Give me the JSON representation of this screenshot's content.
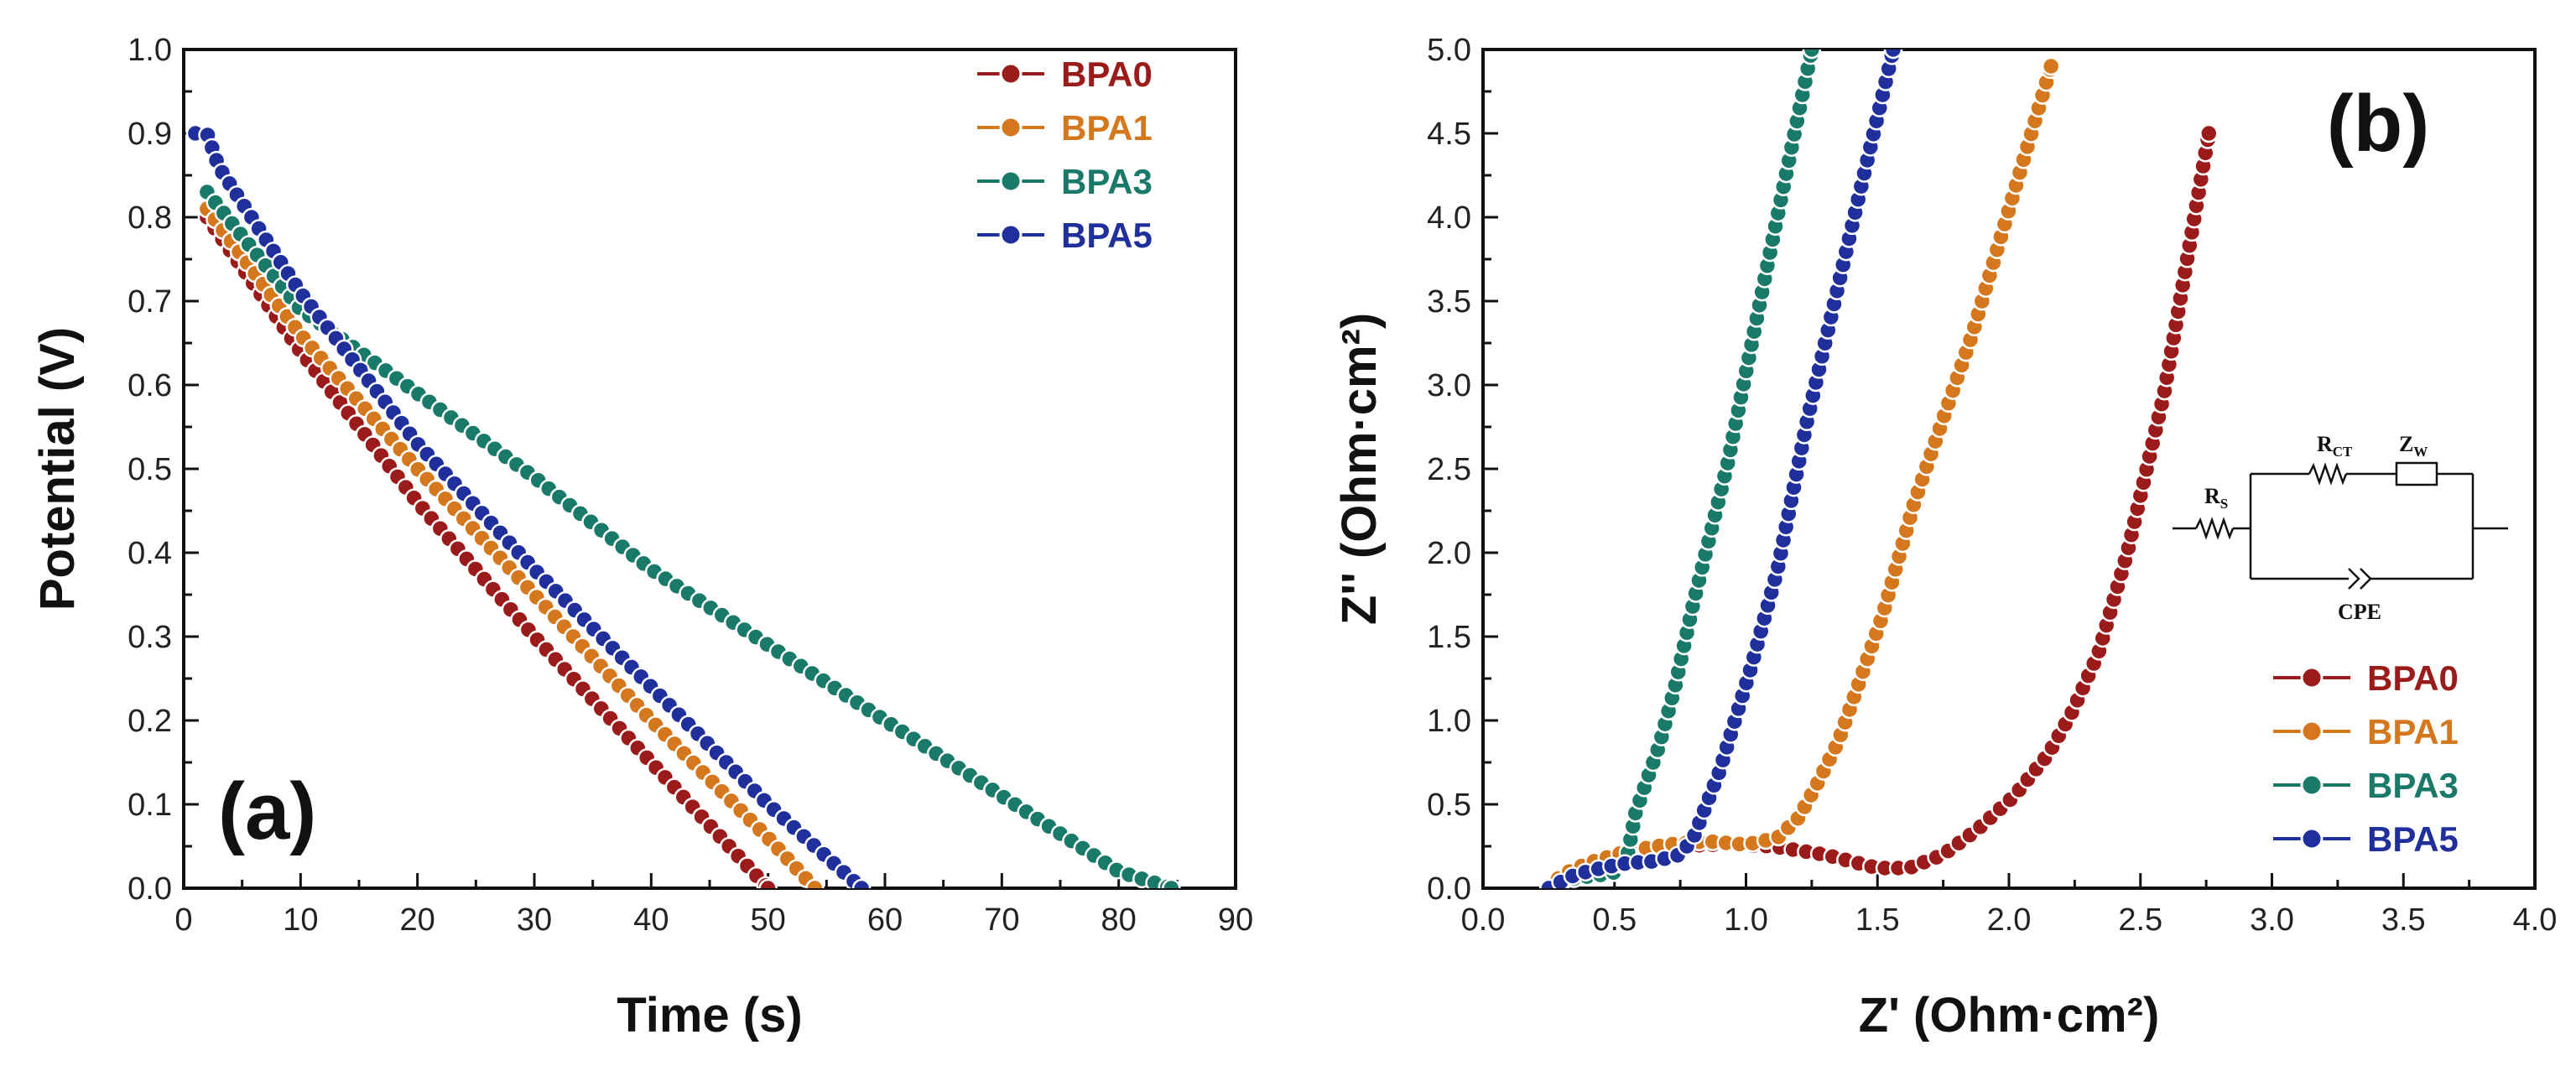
{
  "chart_data": [
    {
      "type": "line",
      "panel_label": "(a)",
      "xlabel": "Time (s)",
      "ylabel": "Potential (V)",
      "xlim": [
        0,
        90
      ],
      "ylim": [
        0,
        1.0
      ],
      "xticks": [
        0,
        10,
        20,
        30,
        40,
        50,
        60,
        70,
        80,
        90
      ],
      "yticks": [
        0.0,
        0.1,
        0.2,
        0.3,
        0.4,
        0.5,
        0.6,
        0.7,
        0.8,
        0.9,
        1.0
      ],
      "xtick_labels": [
        "0",
        "10",
        "20",
        "30",
        "40",
        "50",
        "60",
        "70",
        "80",
        "90"
      ],
      "ytick_labels": [
        "0.0",
        "0.1",
        "0.2",
        "0.3",
        "0.4",
        "0.5",
        "0.6",
        "0.7",
        "0.8",
        "0.9",
        "1.0"
      ],
      "legend_position": "top-right",
      "series": [
        {
          "name": "BPA0",
          "color": "#9b1b1b",
          "points": [
            [
              2,
              0.8
            ],
            [
              10,
              0.64
            ],
            [
              20,
              0.46
            ],
            [
              30,
              0.3
            ],
            [
              40,
              0.15
            ],
            [
              50,
              0.0
            ]
          ]
        },
        {
          "name": "BPA1",
          "color": "#d4771d",
          "points": [
            [
              2,
              0.81
            ],
            [
              10,
              0.66
            ],
            [
              20,
              0.5
            ],
            [
              30,
              0.35
            ],
            [
              40,
              0.2
            ],
            [
              50,
              0.06
            ],
            [
              54,
              0.0
            ]
          ]
        },
        {
          "name": "BPA3",
          "color": "#1a7a6a",
          "points": [
            [
              2,
              0.83
            ],
            [
              10,
              0.69
            ],
            [
              20,
              0.59
            ],
            [
              30,
              0.49
            ],
            [
              40,
              0.38
            ],
            [
              50,
              0.29
            ],
            [
              60,
              0.2
            ],
            [
              70,
              0.11
            ],
            [
              80,
              0.02
            ],
            [
              84.5,
              0.0
            ]
          ]
        },
        {
          "name": "BPA5",
          "color": "#1f2f9c",
          "points": [
            [
              1,
              0.9
            ],
            [
              2,
              0.9
            ],
            [
              3,
              0.86
            ],
            [
              10,
              0.71
            ],
            [
              20,
              0.53
            ],
            [
              30,
              0.38
            ],
            [
              40,
              0.24
            ],
            [
              50,
              0.1
            ],
            [
              58,
              0.0
            ]
          ]
        }
      ]
    },
    {
      "type": "line",
      "panel_label": "(b)",
      "xlabel": "Z' (Ohm·cm²)",
      "ylabel": "Z'' (Ohm·cm²)",
      "xlim": [
        0.0,
        4.0
      ],
      "ylim": [
        0.0,
        5.0
      ],
      "xticks": [
        0.0,
        0.5,
        1.0,
        1.5,
        2.0,
        2.5,
        3.0,
        3.5,
        4.0
      ],
      "yticks": [
        0.0,
        0.5,
        1.0,
        1.5,
        2.0,
        2.5,
        3.0,
        3.5,
        4.0,
        4.5,
        5.0
      ],
      "xtick_labels": [
        "0.0",
        "0.5",
        "1.0",
        "1.5",
        "2.0",
        "2.5",
        "3.0",
        "3.5",
        "4.0"
      ],
      "ytick_labels": [
        "0.0",
        "0.5",
        "1.0",
        "1.5",
        "2.0",
        "2.5",
        "3.0",
        "3.5",
        "4.0",
        "4.5",
        "5.0"
      ],
      "legend_position": "bottom-right",
      "series": [
        {
          "name": "BPA0",
          "color": "#9b1b1b",
          "points": [
            [
              0.25,
              0.0
            ],
            [
              0.3,
              0.08
            ],
            [
              0.4,
              0.16
            ],
            [
              0.55,
              0.22
            ],
            [
              0.7,
              0.25
            ],
            [
              0.9,
              0.26
            ],
            [
              1.1,
              0.25
            ],
            [
              1.3,
              0.2
            ],
            [
              1.5,
              0.12
            ],
            [
              1.62,
              0.12
            ],
            [
              1.75,
              0.2
            ],
            [
              1.88,
              0.35
            ],
            [
              2.02,
              0.55
            ],
            [
              2.15,
              0.8
            ],
            [
              2.24,
              1.05
            ],
            [
              2.34,
              1.4
            ],
            [
              2.45,
              2.0
            ],
            [
              2.59,
              2.95
            ],
            [
              2.76,
              4.5
            ]
          ]
        },
        {
          "name": "BPA1",
          "color": "#d4771d",
          "points": [
            [
              0.25,
              0.0
            ],
            [
              0.3,
              0.08
            ],
            [
              0.4,
              0.15
            ],
            [
              0.55,
              0.22
            ],
            [
              0.7,
              0.26
            ],
            [
              0.85,
              0.28
            ],
            [
              1.0,
              0.26
            ],
            [
              1.12,
              0.3
            ],
            [
              1.2,
              0.42
            ],
            [
              1.27,
              0.62
            ],
            [
              1.35,
              0.87
            ],
            [
              1.42,
              1.18
            ],
            [
              1.52,
              1.63
            ],
            [
              1.64,
              2.3
            ],
            [
              1.86,
              3.3
            ],
            [
              2.16,
              4.9
            ]
          ]
        },
        {
          "name": "BPA3",
          "color": "#1a7a6a",
          "points": [
            [
              0.25,
              0.0
            ],
            [
              0.35,
              0.06
            ],
            [
              0.45,
              0.08
            ],
            [
              0.52,
              0.1
            ],
            [
              0.55,
              0.2
            ],
            [
              0.58,
              0.45
            ],
            [
              0.62,
              0.63
            ],
            [
              0.67,
              0.85
            ],
            [
              0.73,
              1.2
            ],
            [
              0.8,
              1.7
            ],
            [
              0.93,
              2.53
            ],
            [
              1.09,
              3.78
            ],
            [
              1.25,
              5.0
            ]
          ]
        },
        {
          "name": "BPA5",
          "color": "#1f2f9c",
          "points": [
            [
              0.25,
              0.0
            ],
            [
              0.35,
              0.08
            ],
            [
              0.45,
              0.12
            ],
            [
              0.55,
              0.15
            ],
            [
              0.65,
              0.16
            ],
            [
              0.75,
              0.2
            ],
            [
              0.8,
              0.3
            ],
            [
              0.85,
              0.5
            ],
            [
              0.9,
              0.7
            ],
            [
              0.95,
              0.96
            ],
            [
              1.02,
              1.32
            ],
            [
              1.12,
              1.9
            ],
            [
              1.23,
              2.77
            ],
            [
              1.43,
              4.13
            ],
            [
              1.56,
              5.0
            ]
          ]
        }
      ],
      "inset_circuit": {
        "labels": {
          "rs": "R",
          "rs_sub": "S",
          "rct": "R",
          "rct_sub": "CT",
          "zw": "Z",
          "zw_sub": "W",
          "cpe": "CPE"
        }
      }
    }
  ]
}
